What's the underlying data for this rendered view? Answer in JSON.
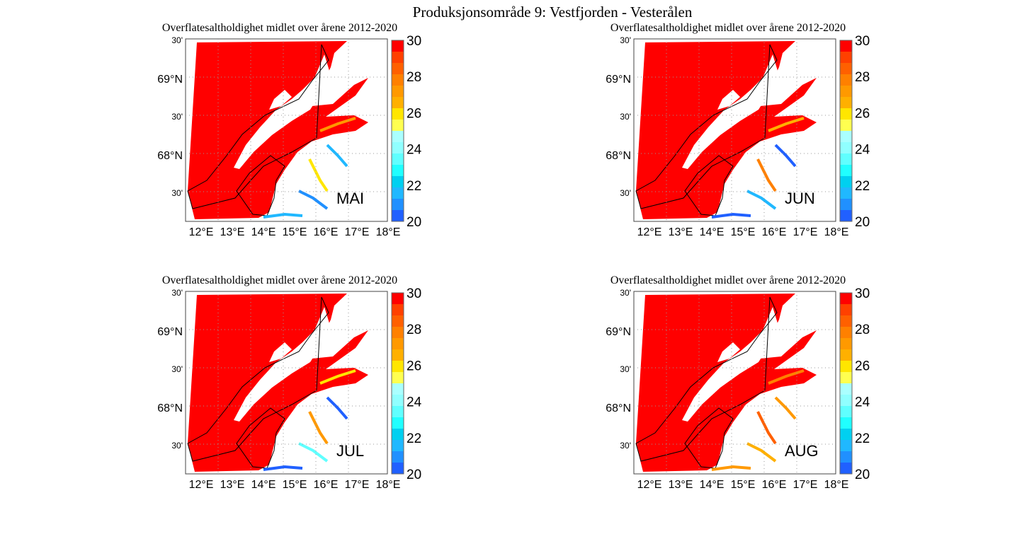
{
  "figure": {
    "title": "Produksjonsområde 9: Vestfjorden - Vesterålen",
    "panels": [
      {
        "title": "Overflatesaltholdighet midlet over årene 2012-2020",
        "month": "MAI",
        "fjord_colors": [
          "#ff9900",
          "#20b8ff",
          "#ffe600",
          "#2090ff"
        ]
      },
      {
        "title": "Overflatesaltholdighet midlet over årene 2012-2020",
        "month": "JUN",
        "fjord_colors": [
          "#ffb000",
          "#2060ff",
          "#ff8000",
          "#20b8ff"
        ]
      },
      {
        "title": "Overflatesaltholdighet midlet over årene 2012-2020",
        "month": "JUL",
        "fjord_colors": [
          "#ffe600",
          "#2060ff",
          "#ff9900",
          "#60ffff"
        ]
      },
      {
        "title": "Overflatesaltholdighet midlet over årene 2012-2020",
        "month": "AUG",
        "fjord_colors": [
          "#ff8000",
          "#ff9900",
          "#ff6000",
          "#ffb000"
        ]
      }
    ],
    "lat_labels": [
      "30'",
      "69°N",
      "30'",
      "68°N",
      "30'"
    ],
    "lon_labels": [
      "12°E",
      "13°E",
      "14°E",
      "15°E",
      "16°E",
      "17°E",
      "18°E"
    ],
    "colorbar": {
      "min": 20,
      "max": 30,
      "tick_labels": [
        "30",
        "28",
        "26",
        "24",
        "22",
        "20"
      ],
      "colors": [
        "#ff0000",
        "#ff4000",
        "#ff6000",
        "#ff8000",
        "#ff9900",
        "#ffb000",
        "#ffe600",
        "#ffff50",
        "#aaffff",
        "#90ffff",
        "#60ffff",
        "#20ffff",
        "#00d0f0",
        "#20b8ff",
        "#2090ff",
        "#2060ff"
      ]
    }
  }
}
